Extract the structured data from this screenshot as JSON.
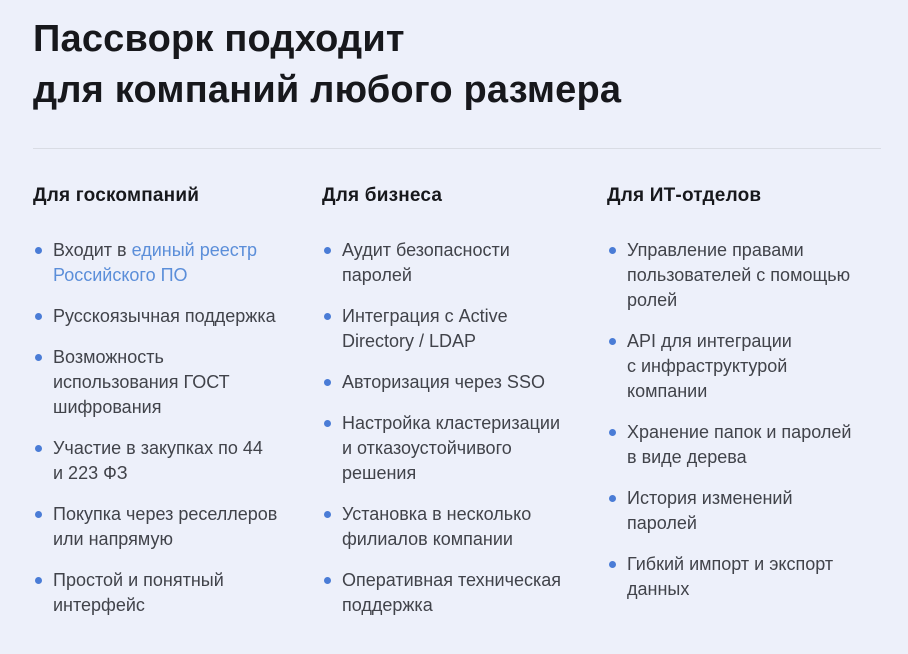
{
  "page": {
    "title": "Пассворк подходит\nдля компаний любого размера"
  },
  "colors": {
    "background": "#edf0fa",
    "heading": "#17181c",
    "body-text": "#41434a",
    "accent-bullet": "#4a7cd6",
    "link": "#5b8ed9",
    "divider": "#d9dce4"
  },
  "columns": [
    {
      "title": "Для госкомпаний",
      "items": [
        {
          "prefix": "Входит в ",
          "link_text": "единый реестр\nРоссийского ПО"
        },
        {
          "text": "Русскоязычная поддержка"
        },
        {
          "text": "Возможность\nиспользования ГОСТ\nшифрования"
        },
        {
          "text": "Участие в закупках по 44\nи 223 ФЗ"
        },
        {
          "text": "Покупка через реселлеров\nили напрямую"
        },
        {
          "text": "Простой и понятный\nинтерфейс"
        }
      ]
    },
    {
      "title": "Для бизнеса",
      "items": [
        {
          "text": "Аудит безопасности\nпаролей"
        },
        {
          "text": "Интеграция с Active\nDirectory / LDAP"
        },
        {
          "text": "Авторизация через SSO"
        },
        {
          "text": "Настройка кластеризации\nи отказоустойчивого\nрешения"
        },
        {
          "text": "Установка в несколько\nфилиалов компании"
        },
        {
          "text": "Оперативная техническая\nподдержка"
        }
      ]
    },
    {
      "title": "Для ИТ-отделов",
      "items": [
        {
          "text": "Управление правами\nпользователей с помощью\nролей"
        },
        {
          "text": "API для интеграции\nс инфраструктурой\nкомпании"
        },
        {
          "text": "Хранение папок и паролей\nв виде дерева"
        },
        {
          "text": "История изменений\nпаролей"
        },
        {
          "text": "Гибкий импорт и экспорт\nданных"
        }
      ]
    }
  ]
}
